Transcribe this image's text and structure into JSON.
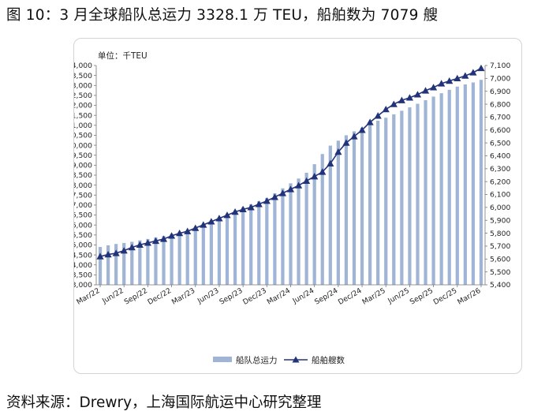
{
  "figure": {
    "title": "图 10：3 月全球船队总运力 3328.1 万 TEU，船舶数为 7079 艘",
    "source": "资料来源：Drewry，上海国际航运中心研究整理"
  },
  "chart_data": {
    "type": "bar",
    "unit_label": "单位：千TEU",
    "x": [
      "Mar/22",
      "Apr/22",
      "May/22",
      "Jun/22",
      "Jul/22",
      "Aug/22",
      "Sep/22",
      "Oct/22",
      "Nov/22",
      "Dec/22",
      "Jan/23",
      "Feb/23",
      "Mar/23",
      "Apr/23",
      "May/23",
      "Jun/23",
      "Jul/23",
      "Aug/23",
      "Sep/23",
      "Oct/23",
      "Nov/23",
      "Dec/23",
      "Jan/24",
      "Feb/24",
      "Mar/24",
      "Apr/24",
      "May/24",
      "Jun/24",
      "Jul/24",
      "Aug/24",
      "Sep/24",
      "Oct/24",
      "Nov/24",
      "Dec/24",
      "Jan/25",
      "Feb/25",
      "Mar/25",
      "Apr/25",
      "May/25",
      "Jun/25",
      "Jul/25",
      "Aug/25",
      "Sep/25",
      "Oct/25",
      "Nov/25",
      "Dec/25",
      "Jan/26",
      "Feb/26",
      "Mar/26"
    ],
    "xtick_labels": [
      "Mar/22",
      "Jun/22",
      "Sep/22",
      "Dec/22",
      "Mar/23",
      "Jun/23",
      "Sep/23",
      "Dec/23",
      "Mar/24",
      "Jun/24",
      "Sep/24",
      "Dec/24",
      "Mar/25",
      "Jun/25",
      "Sep/25",
      "Dec/25",
      "Mar/26"
    ],
    "series": [
      {
        "name": "船队总运力",
        "kind": "bar",
        "axis": "left",
        "color": "#a0b5d6",
        "values": [
          24900,
          24980,
          25050,
          25100,
          25160,
          25230,
          25300,
          25380,
          25450,
          25550,
          25640,
          25730,
          25860,
          26020,
          26190,
          26380,
          26560,
          26730,
          26890,
          27040,
          27190,
          27360,
          27590,
          27840,
          28090,
          28330,
          28620,
          29050,
          29560,
          29980,
          30230,
          30500,
          30700,
          30880,
          31050,
          31230,
          31380,
          31550,
          31730,
          31900,
          32080,
          32260,
          32440,
          32610,
          32780,
          32940,
          33050,
          33150,
          33281
        ]
      },
      {
        "name": "船舶艘数",
        "kind": "line",
        "axis": "right",
        "color": "#22337a",
        "values": [
          5620,
          5635,
          5645,
          5665,
          5690,
          5710,
          5725,
          5740,
          5755,
          5780,
          5800,
          5815,
          5840,
          5865,
          5890,
          5915,
          5940,
          5965,
          5985,
          6000,
          6025,
          6050,
          6080,
          6110,
          6140,
          6170,
          6205,
          6240,
          6275,
          6340,
          6430,
          6500,
          6550,
          6600,
          6660,
          6710,
          6760,
          6800,
          6830,
          6850,
          6875,
          6905,
          6930,
          6960,
          6980,
          7000,
          7020,
          7045,
          7079
        ]
      }
    ],
    "y_left": {
      "min": 23000,
      "max": 34000,
      "step": 500
    },
    "y_right": {
      "min": 5400,
      "max": 7100,
      "step": 100
    },
    "legend_position": "bottom",
    "grid": false
  }
}
